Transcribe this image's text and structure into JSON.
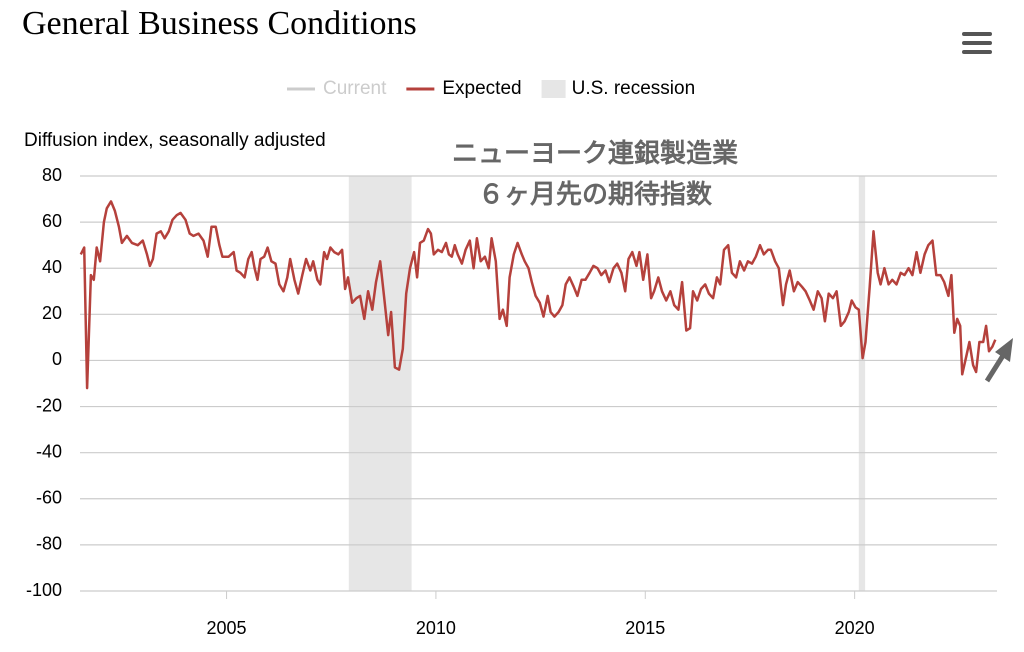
{
  "chart_data": {
    "type": "line",
    "title": "General Business Conditions",
    "y_axis_label": "Diffusion index, seasonally adjusted",
    "annotation": [
      "ニューヨーク連銀製造業",
      "６ヶ月先の期待指数"
    ],
    "inactive_legend": {
      "name": "Current",
      "color": "#cccccc"
    },
    "recession": {
      "name": "U.S. recession",
      "color": "#e6e6e6",
      "spans": [
        [
          2007.92,
          2009.42
        ],
        [
          2020.1,
          2020.25
        ]
      ]
    },
    "xlim": [
      2001.5,
      2023.4
    ],
    "xticks": [
      2005,
      2010,
      2015,
      2020
    ],
    "ylim": [
      -100,
      80
    ],
    "yticks": [
      -100,
      -80,
      -60,
      -40,
      -20,
      0,
      20,
      40,
      60,
      80
    ],
    "grid": true,
    "x": [
      2001.52,
      2001.6,
      2001.67,
      2001.76,
      2001.83,
      2001.9,
      2001.98,
      2002.07,
      2002.14,
      2002.24,
      2002.33,
      2002.43,
      2002.5,
      2002.62,
      2002.74,
      2002.88,
      2003.0,
      2003.1,
      2003.17,
      2003.24,
      2003.33,
      2003.43,
      2003.52,
      2003.62,
      2003.71,
      2003.81,
      2003.9,
      2004.02,
      2004.12,
      2004.21,
      2004.33,
      2004.45,
      2004.55,
      2004.64,
      2004.74,
      2004.83,
      2004.9,
      2005.05,
      2005.17,
      2005.24,
      2005.33,
      2005.43,
      2005.52,
      2005.6,
      2005.67,
      2005.74,
      2005.81,
      2005.9,
      2005.98,
      2006.07,
      2006.17,
      2006.26,
      2006.36,
      2006.45,
      2006.52,
      2006.62,
      2006.71,
      2006.81,
      2006.9,
      2007.0,
      2007.07,
      2007.17,
      2007.24,
      2007.33,
      2007.4,
      2007.48,
      2007.57,
      2007.67,
      2007.76,
      2007.83,
      2007.9,
      2008.0,
      2008.1,
      2008.19,
      2008.29,
      2008.38,
      2008.48,
      2008.57,
      2008.67,
      2008.76,
      2008.86,
      2008.93,
      2009.02,
      2009.12,
      2009.21,
      2009.29,
      2009.38,
      2009.48,
      2009.55,
      2009.62,
      2009.71,
      2009.81,
      2009.88,
      2009.95,
      2010.05,
      2010.14,
      2010.24,
      2010.31,
      2010.38,
      2010.45,
      2010.52,
      2010.62,
      2010.71,
      2010.81,
      2010.9,
      2010.98,
      2011.07,
      2011.17,
      2011.26,
      2011.33,
      2011.43,
      2011.52,
      2011.6,
      2011.69,
      2011.76,
      2011.86,
      2011.95,
      2012.05,
      2012.12,
      2012.21,
      2012.29,
      2012.38,
      2012.48,
      2012.57,
      2012.67,
      2012.74,
      2012.83,
      2012.93,
      2013.02,
      2013.1,
      2013.19,
      2013.29,
      2013.38,
      2013.48,
      2013.57,
      2013.67,
      2013.76,
      2013.86,
      2013.95,
      2014.05,
      2014.14,
      2014.24,
      2014.33,
      2014.43,
      2014.52,
      2014.6,
      2014.69,
      2014.79,
      2014.86,
      2014.95,
      2015.05,
      2015.14,
      2015.21,
      2015.31,
      2015.4,
      2015.5,
      2015.6,
      2015.69,
      2015.79,
      2015.88,
      2015.98,
      2016.07,
      2016.14,
      2016.24,
      2016.33,
      2016.43,
      2016.52,
      2016.62,
      2016.71,
      2016.79,
      2016.88,
      2016.98,
      2017.07,
      2017.17,
      2017.26,
      2017.36,
      2017.45,
      2017.55,
      2017.64,
      2017.74,
      2017.83,
      2017.93,
      2018.0,
      2018.1,
      2018.19,
      2018.29,
      2018.36,
      2018.45,
      2018.55,
      2018.64,
      2018.74,
      2018.83,
      2018.93,
      2019.02,
      2019.12,
      2019.21,
      2019.29,
      2019.38,
      2019.48,
      2019.57,
      2019.67,
      2019.76,
      2019.86,
      2019.93,
      2020.02,
      2020.1,
      2020.19,
      2020.26,
      2020.36,
      2020.45,
      2020.55,
      2020.62,
      2020.71,
      2020.81,
      2020.9,
      2021.0,
      2021.1,
      2021.19,
      2021.29,
      2021.38,
      2021.48,
      2021.57,
      2021.67,
      2021.76,
      2021.86,
      2021.95,
      2022.05,
      2022.14,
      2022.24,
      2022.31,
      2022.38,
      2022.45,
      2022.52,
      2022.57,
      2022.67,
      2022.74,
      2022.83,
      2022.9,
      2022.98,
      2023.07,
      2023.14,
      2023.21,
      2023.29,
      2023.36
    ],
    "series": [
      {
        "name": "Expected",
        "color": "#b5413c",
        "values": [
          46,
          49,
          -12,
          37,
          35,
          49,
          43,
          60,
          66,
          69,
          65,
          58,
          51,
          54,
          51,
          50,
          52,
          46,
          41,
          44,
          55,
          56,
          53,
          56,
          61,
          63,
          64,
          61,
          55,
          54,
          55,
          52,
          45,
          58,
          58,
          50,
          45,
          45,
          47,
          39,
          38,
          36,
          44,
          47,
          40,
          35,
          44,
          45,
          49,
          43,
          42,
          33,
          30,
          36,
          44,
          35,
          29,
          37,
          44,
          39,
          43,
          35,
          33,
          47,
          44,
          49,
          47,
          46,
          48,
          31,
          36,
          25,
          27,
          28,
          18,
          30,
          22,
          34,
          43,
          28,
          11,
          21,
          -3,
          -4,
          5,
          29,
          40,
          47,
          36,
          51,
          52,
          57,
          55,
          46,
          48,
          47,
          51,
          46,
          45,
          50,
          46,
          42,
          48,
          52,
          40,
          53,
          43,
          45,
          40,
          53,
          43,
          18,
          22,
          15,
          36,
          46,
          51,
          46,
          43,
          40,
          34,
          28,
          25,
          19,
          28,
          21,
          19,
          21,
          24,
          33,
          36,
          32,
          28,
          35,
          35,
          38,
          41,
          40,
          37,
          39,
          34,
          40,
          42,
          38,
          30,
          44,
          47,
          41,
          47,
          35,
          46,
          27,
          30,
          36,
          30,
          26,
          30,
          24,
          22,
          34,
          13,
          14,
          30,
          26,
          31,
          33,
          29,
          27,
          36,
          33,
          48,
          50,
          38,
          36,
          43,
          39,
          43,
          42,
          45,
          50,
          46,
          48,
          48,
          43,
          40,
          24,
          33,
          39,
          30,
          34,
          32,
          30,
          26,
          22,
          30,
          27,
          17,
          29,
          27,
          30,
          15,
          17,
          21,
          26,
          23,
          22,
          1,
          8,
          32,
          56,
          38,
          33,
          40,
          33,
          35,
          33,
          38,
          37,
          40,
          37,
          47,
          38,
          46,
          50,
          52,
          37,
          37,
          34,
          28,
          37,
          12,
          18,
          15,
          -6,
          2,
          8,
          -2,
          -5,
          8,
          8,
          15,
          4,
          6,
          9
        ]
      }
    ]
  }
}
